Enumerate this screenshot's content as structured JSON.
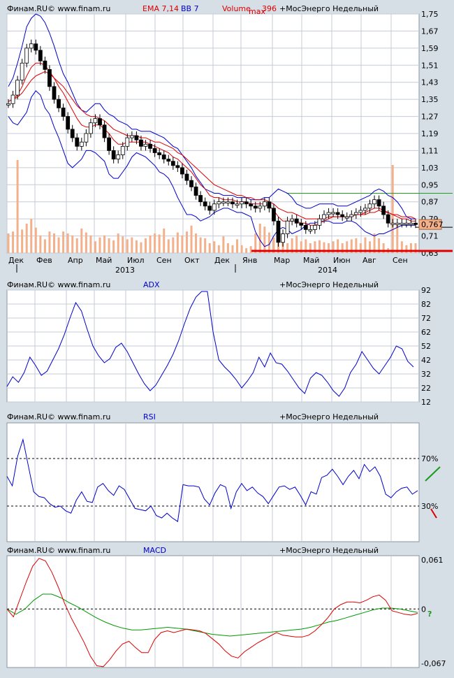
{
  "colors": {
    "background": "#d6dee6",
    "panel": "#ffffff",
    "grid": "#c4ccd6",
    "candle_up": "#ffffff",
    "candle_down": "#000000",
    "ema": "#dd0000",
    "bollinger": "#0000cc",
    "volume": "#f4b08a",
    "support": "#e00000",
    "resistance": "#20a020",
    "adx": "#0000cc",
    "rsi": "#0000cc",
    "macd": "#dd0000",
    "signal": "#009900",
    "text_blue": "#0000cc",
    "text_red": "#dd0000"
  },
  "chart_data": [
    {
      "type": "candlestick",
      "watermark": "Финам.RU© www.finam.ru",
      "indicators": {
        "ema": "EMA 7,14",
        "bb": "BB 7",
        "volume": "Volume",
        "volume_sub": "max",
        "volume_value": "396"
      },
      "symbol": "+МосЭнерго Недельный",
      "current_price": "0,767",
      "y_ticks": [
        "1,75",
        "1,67",
        "1,59",
        "1,51",
        "1,43",
        "1,35",
        "1,27",
        "1,19",
        "1,11",
        "1,03",
        "0,95",
        "0,87",
        "0,79",
        "0,71",
        "0,63"
      ],
      "ylim": [
        0.63,
        1.75
      ],
      "x_ticks": [
        "Дек",
        "Фев",
        "Апр",
        "Май",
        "Июл",
        "Сен",
        "Окт",
        "Дек",
        "Янв",
        "Мар",
        "Май",
        "Июн",
        "Авг",
        "Сен"
      ],
      "years": [
        "2013",
        "2014"
      ],
      "close": [
        1.33,
        1.37,
        1.44,
        1.52,
        1.59,
        1.61,
        1.58,
        1.53,
        1.49,
        1.41,
        1.35,
        1.31,
        1.27,
        1.21,
        1.17,
        1.13,
        1.15,
        1.19,
        1.24,
        1.26,
        1.23,
        1.17,
        1.11,
        1.07,
        1.09,
        1.13,
        1.17,
        1.18,
        1.16,
        1.13,
        1.14,
        1.12,
        1.1,
        1.09,
        1.07,
        1.06,
        1.04,
        1.03,
        1.0,
        0.97,
        0.94,
        0.9,
        0.87,
        0.85,
        0.83,
        0.86,
        0.87,
        0.87,
        0.87,
        0.86,
        0.86,
        0.87,
        0.86,
        0.85,
        0.84,
        0.85,
        0.87,
        0.84,
        0.78,
        0.68,
        0.72,
        0.78,
        0.79,
        0.77,
        0.76,
        0.74,
        0.74,
        0.76,
        0.79,
        0.81,
        0.82,
        0.82,
        0.81,
        0.8,
        0.8,
        0.81,
        0.82,
        0.83,
        0.84,
        0.86,
        0.88,
        0.85,
        0.81,
        0.77,
        0.77,
        0.77,
        0.77,
        0.77,
        0.77,
        0.767
      ],
      "ema_fast": [
        1.34,
        1.35,
        1.37,
        1.41,
        1.46,
        1.5,
        1.52,
        1.52,
        1.51,
        1.48,
        1.45,
        1.41,
        1.38,
        1.34,
        1.3,
        1.26,
        1.23,
        1.22,
        1.22,
        1.23,
        1.23,
        1.21,
        1.19,
        1.16,
        1.14,
        1.14,
        1.15,
        1.15,
        1.15,
        1.15,
        1.15,
        1.14,
        1.13,
        1.12,
        1.11,
        1.1,
        1.08,
        1.07,
        1.05,
        1.03,
        1.01,
        0.98,
        0.95,
        0.93,
        0.9,
        0.89,
        0.89,
        0.88,
        0.88,
        0.88,
        0.87,
        0.87,
        0.87,
        0.86,
        0.86,
        0.86,
        0.86,
        0.85,
        0.83,
        0.8,
        0.78,
        0.78,
        0.78,
        0.78,
        0.77,
        0.77,
        0.76,
        0.76,
        0.77,
        0.78,
        0.79,
        0.8,
        0.8,
        0.8,
        0.8,
        0.8,
        0.81,
        0.81,
        0.82,
        0.83,
        0.84,
        0.84,
        0.83,
        0.82,
        0.81,
        0.8,
        0.79,
        0.79,
        0.78,
        0.78
      ],
      "ema_slow": [
        1.34,
        1.35,
        1.36,
        1.38,
        1.41,
        1.44,
        1.46,
        1.47,
        1.48,
        1.47,
        1.45,
        1.43,
        1.41,
        1.38,
        1.35,
        1.32,
        1.3,
        1.28,
        1.27,
        1.27,
        1.26,
        1.25,
        1.23,
        1.21,
        1.2,
        1.19,
        1.18,
        1.18,
        1.18,
        1.17,
        1.17,
        1.16,
        1.15,
        1.15,
        1.14,
        1.13,
        1.12,
        1.1,
        1.09,
        1.07,
        1.05,
        1.03,
        1.01,
        0.99,
        0.97,
        0.95,
        0.94,
        0.93,
        0.92,
        0.91,
        0.9,
        0.9,
        0.89,
        0.89,
        0.88,
        0.88,
        0.88,
        0.87,
        0.86,
        0.84,
        0.83,
        0.82,
        0.82,
        0.81,
        0.8,
        0.79,
        0.79,
        0.79,
        0.79,
        0.79,
        0.8,
        0.8,
        0.8,
        0.8,
        0.8,
        0.8,
        0.81,
        0.81,
        0.81,
        0.82,
        0.82,
        0.83,
        0.82,
        0.82,
        0.81,
        0.81,
        0.8,
        0.8,
        0.8,
        0.79
      ],
      "bb_upper": [
        1.41,
        1.45,
        1.52,
        1.6,
        1.69,
        1.73,
        1.75,
        1.74,
        1.71,
        1.66,
        1.6,
        1.53,
        1.47,
        1.43,
        1.38,
        1.33,
        1.3,
        1.29,
        1.31,
        1.33,
        1.33,
        1.3,
        1.28,
        1.27,
        1.25,
        1.24,
        1.23,
        1.21,
        1.21,
        1.2,
        1.2,
        1.2,
        1.19,
        1.18,
        1.17,
        1.15,
        1.13,
        1.12,
        1.09,
        1.06,
        1.03,
        0.99,
        0.96,
        0.93,
        0.92,
        0.91,
        0.91,
        0.9,
        0.9,
        0.9,
        0.89,
        0.89,
        0.89,
        0.88,
        0.88,
        0.88,
        0.89,
        0.89,
        0.91,
        0.93,
        0.92,
        0.91,
        0.89,
        0.86,
        0.85,
        0.84,
        0.84,
        0.85,
        0.86,
        0.86,
        0.86,
        0.86,
        0.85,
        0.85,
        0.85,
        0.86,
        0.87,
        0.88,
        0.89,
        0.9,
        0.92,
        0.93,
        0.92,
        0.9,
        0.89,
        0.87,
        0.84,
        0.8,
        0.79,
        0.79
      ],
      "bb_lower": [
        1.27,
        1.24,
        1.23,
        1.26,
        1.29,
        1.36,
        1.39,
        1.37,
        1.31,
        1.28,
        1.22,
        1.17,
        1.11,
        1.05,
        1.03,
        1.05,
        1.07,
        1.11,
        1.11,
        1.1,
        1.08,
        1.06,
        1.0,
        0.98,
        0.98,
        1.01,
        1.04,
        1.08,
        1.1,
        1.09,
        1.08,
        1.06,
        1.04,
        1.01,
        1.0,
        0.98,
        0.94,
        0.89,
        0.85,
        0.81,
        0.81,
        0.8,
        0.78,
        0.79,
        0.8,
        0.82,
        0.83,
        0.84,
        0.84,
        0.83,
        0.82,
        0.82,
        0.81,
        0.8,
        0.73,
        0.69,
        0.66,
        0.67,
        0.71,
        0.74,
        0.75,
        0.74,
        0.72,
        0.73,
        0.74,
        0.76,
        0.77,
        0.77,
        0.78,
        0.78,
        0.78,
        0.77,
        0.77,
        0.77,
        0.78,
        0.78,
        0.77,
        0.75,
        0.73,
        0.72,
        0.71,
        0.72,
        0.72,
        0.73,
        0.74,
        0.75,
        0.76,
        0.76,
        0.76,
        0.76
      ],
      "volume": [
        0.2,
        0.22,
        0.95,
        0.24,
        0.3,
        0.35,
        0.26,
        0.18,
        0.14,
        0.22,
        0.2,
        0.16,
        0.22,
        0.2,
        0.18,
        0.15,
        0.25,
        0.21,
        0.18,
        0.12,
        0.16,
        0.18,
        0.15,
        0.13,
        0.2,
        0.17,
        0.14,
        0.16,
        0.13,
        0.11,
        0.15,
        0.18,
        0.2,
        0.19,
        0.25,
        0.14,
        0.16,
        0.21,
        0.18,
        0.22,
        0.28,
        0.2,
        0.16,
        0.15,
        0.1,
        0.12,
        0.08,
        0.17,
        0.1,
        0.08,
        0.14,
        0.08,
        0.05,
        0.07,
        0.2,
        0.3,
        0.27,
        0.21,
        0.16,
        0.14,
        0.12,
        0.1,
        0.15,
        0.18,
        0.12,
        0.14,
        0.1,
        0.12,
        0.13,
        0.11,
        0.1,
        0.12,
        0.14,
        0.1,
        0.12,
        0.14,
        0.15,
        0.1,
        0.16,
        0.12,
        0.2,
        0.15,
        0.1,
        0.05,
        0.9,
        0.3,
        0.12,
        0.08,
        0.1,
        0.1
      ],
      "support": 0.64,
      "resistance": 0.91
    },
    {
      "type": "line",
      "watermark": "Финам.RU© www.finam.ru",
      "title": "ADX",
      "symbol": "+МосЭнерго Недельный",
      "y_ticks": [
        "92",
        "82",
        "72",
        "62",
        "52",
        "42",
        "32",
        "22",
        "12"
      ],
      "ylim": [
        12,
        92
      ],
      "values": [
        23,
        30,
        26,
        33,
        44,
        38,
        31,
        34,
        42,
        50,
        60,
        72,
        83,
        77,
        64,
        52,
        45,
        40,
        43,
        51,
        54,
        48,
        40,
        32,
        25,
        20,
        24,
        31,
        38,
        46,
        56,
        68,
        79,
        87,
        91,
        91,
        62,
        42,
        37,
        33,
        28,
        22,
        27,
        33,
        44,
        37,
        47,
        40,
        39,
        34,
        28,
        22,
        18,
        29,
        33,
        31,
        26,
        20,
        16,
        22,
        33,
        39,
        48,
        42,
        36,
        32,
        38,
        44,
        52,
        50,
        41,
        37
      ],
      "x_ticks": []
    },
    {
      "type": "line",
      "watermark": "Финам.RU© www.finam.ru",
      "title": "RSI",
      "symbol": "+МосЭнерго Недельный",
      "y_ticks": [
        "70%",
        "30%"
      ],
      "ylim": [
        0,
        100
      ],
      "levels": [
        70,
        30
      ],
      "values": [
        55,
        47,
        72,
        86,
        64,
        42,
        38,
        37,
        32,
        29,
        30,
        26,
        24,
        35,
        42,
        34,
        33,
        46,
        49,
        43,
        39,
        47,
        44,
        36,
        28,
        27,
        26,
        30,
        22,
        20,
        24,
        20,
        17,
        48,
        47,
        47,
        46,
        36,
        31,
        41,
        48,
        46,
        28,
        42,
        49,
        43,
        46,
        41,
        38,
        32,
        39,
        46,
        47,
        44,
        46,
        39,
        31,
        42,
        40,
        54,
        56,
        61,
        55,
        48,
        55,
        60,
        53,
        65,
        59,
        63,
        55,
        40,
        37,
        42,
        45,
        46,
        40,
        43
      ],
      "arrow_up_color": "#1a9a1a",
      "arrow_down_color": "#dd0000"
    },
    {
      "type": "line",
      "watermark": "Финам.RU© www.finam.ru",
      "title": "MACD",
      "symbol": "+МосЭнерго Недельный",
      "y_ticks": [
        "0,061",
        "0",
        "-0,067"
      ],
      "ylim": [
        -0.067,
        0.061
      ],
      "zero_line": 0,
      "macd": [
        0.0,
        -0.009,
        0.011,
        0.031,
        0.049,
        0.058,
        0.055,
        0.042,
        0.025,
        0.006,
        -0.01,
        -0.024,
        -0.038,
        -0.054,
        -0.065,
        -0.066,
        -0.058,
        -0.048,
        -0.04,
        -0.037,
        -0.044,
        -0.05,
        -0.05,
        -0.035,
        -0.027,
        -0.025,
        -0.027,
        -0.025,
        -0.023,
        -0.024,
        -0.025,
        -0.028,
        -0.034,
        -0.04,
        -0.048,
        -0.054,
        -0.056,
        -0.049,
        -0.044,
        -0.039,
        -0.035,
        -0.031,
        -0.027,
        -0.03,
        -0.031,
        -0.032,
        -0.032,
        -0.03,
        -0.025,
        -0.018,
        -0.01,
        0.0,
        0.005,
        0.008,
        0.008,
        0.007,
        0.01,
        0.014,
        0.016,
        0.01,
        -0.002,
        -0.004,
        -0.006,
        -0.007,
        -0.005
      ],
      "signal": [
        0.0,
        -0.006,
        0.0,
        0.01,
        0.017,
        0.017,
        0.013,
        0.007,
        0.002,
        -0.004,
        -0.01,
        -0.015,
        -0.019,
        -0.022,
        -0.024,
        -0.024,
        -0.023,
        -0.022,
        -0.021,
        -0.022,
        -0.023,
        -0.025,
        -0.027,
        -0.029,
        -0.03,
        -0.031,
        -0.03,
        -0.029,
        -0.028,
        -0.027,
        -0.026,
        -0.025,
        -0.024,
        -0.023,
        -0.021,
        -0.018,
        -0.015,
        -0.013,
        -0.01,
        -0.007,
        -0.004,
        -0.001,
        0.001,
        0.001,
        0.0,
        -0.002,
        -0.004
      ],
      "question_mark": "?",
      "question_color": "#1a9a1a"
    }
  ]
}
